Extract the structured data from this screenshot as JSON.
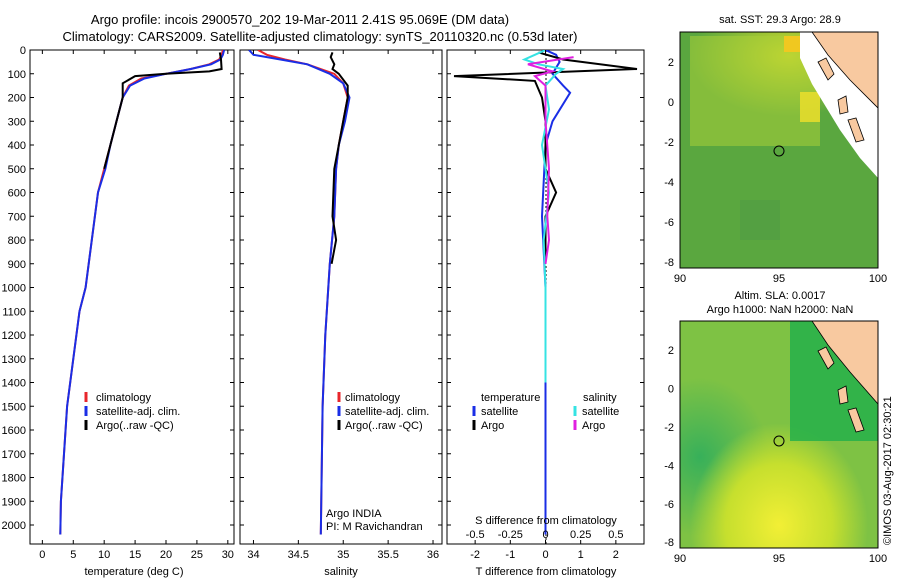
{
  "header": {
    "title_line1": "Argo profile: incois 2900570_202 19-Mar-2011 2.41S 95.069E (DM data)",
    "title_line2": "Climatology: CARS2009. Satellite-adjusted climatology: synTS_20110320.nc (0.53d later)"
  },
  "footer": {
    "credit": "©IMOS 03-Aug-2017 02:30:21"
  },
  "colors": {
    "climatology": "#e8262b",
    "satellite": "#1a2ee6",
    "argo": "#000000",
    "salinity_satellite": "#35e3e3",
    "salinity_argo": "#e020e0"
  },
  "chart_data": [
    {
      "type": "line",
      "name": "temperature-profile",
      "xlabel": "temperature (deg C)",
      "ylabel": "depth (m)",
      "xlim": [
        -2,
        31
      ],
      "ylim": [
        2080,
        0
      ],
      "xticks": [
        0,
        5,
        10,
        15,
        20,
        25,
        30
      ],
      "yticks": [
        0,
        100,
        200,
        300,
        400,
        500,
        600,
        700,
        800,
        900,
        1000,
        1100,
        1200,
        1300,
        1400,
        1500,
        1600,
        1700,
        1800,
        1900,
        2000
      ],
      "legend": [
        "climatology",
        "satellite-adj. clim.",
        "Argo(..raw -QC)"
      ],
      "series": [
        {
          "name": "climatology",
          "color": "#e8262b",
          "points": [
            [
              29.2,
              0
            ],
            [
              29,
              20
            ],
            [
              28.6,
              40
            ],
            [
              27,
              60
            ],
            [
              24,
              80
            ],
            [
              20,
              100
            ],
            [
              16,
              120
            ],
            [
              14,
              150
            ],
            [
              13,
              200
            ],
            [
              12,
              300
            ],
            [
              11,
              400
            ],
            [
              10,
              500
            ],
            [
              9,
              600
            ],
            [
              8,
              800
            ],
            [
              7,
              1000
            ],
            [
              6,
              1100
            ],
            [
              5,
              1300
            ],
            [
              4,
              1500
            ],
            [
              3.5,
              1700
            ],
            [
              3,
              1900
            ],
            [
              2.9,
              2040
            ]
          ]
        },
        {
          "name": "satellite-adj. clim.",
          "color": "#1a2ee6",
          "points": [
            [
              29.4,
              0
            ],
            [
              29.2,
              20
            ],
            [
              28.8,
              40
            ],
            [
              27.3,
              60
            ],
            [
              24,
              80
            ],
            [
              20,
              100
            ],
            [
              16.5,
              120
            ],
            [
              14.2,
              150
            ],
            [
              13,
              200
            ],
            [
              12,
              300
            ],
            [
              11,
              400
            ],
            [
              10.2,
              500
            ],
            [
              9,
              600
            ],
            [
              8,
              800
            ],
            [
              7,
              1000
            ],
            [
              6,
              1100
            ],
            [
              5,
              1300
            ],
            [
              4,
              1500
            ],
            [
              3.5,
              1700
            ],
            [
              3,
              1900
            ],
            [
              2.9,
              2040
            ]
          ]
        },
        {
          "name": "Argo(..raw -QC)",
          "color": "#000000",
          "points": [
            [
              28.7,
              10
            ],
            [
              28.9,
              40
            ],
            [
              29,
              80
            ],
            [
              27,
              90
            ],
            [
              20,
              100
            ],
            [
              15,
              110
            ],
            [
              13,
              140
            ],
            [
              13,
              200
            ],
            [
              12,
              300
            ],
            [
              11,
              400
            ],
            [
              10,
              500
            ]
          ]
        }
      ]
    },
    {
      "type": "line",
      "name": "salinity-profile",
      "xlabel": "salinity",
      "ylabel": "depth (m)",
      "xlim": [
        33.85,
        36.1
      ],
      "ylim": [
        2080,
        0
      ],
      "xticks": [
        34,
        34.5,
        35,
        35.5,
        36
      ],
      "legend": [
        "climatology",
        "satellite-adj. clim.",
        "Argo(..raw -QC)"
      ],
      "annotation": [
        "Argo INDIA",
        "PI: M Ravichandran"
      ],
      "series": [
        {
          "name": "climatology",
          "color": "#e8262b",
          "points": [
            [
              34.05,
              0
            ],
            [
              34.15,
              20
            ],
            [
              34.35,
              40
            ],
            [
              34.6,
              60
            ],
            [
              34.9,
              100
            ],
            [
              35.0,
              140
            ],
            [
              35.05,
              200
            ],
            [
              35.0,
              300
            ],
            [
              34.95,
              400
            ],
            [
              34.92,
              500
            ],
            [
              34.9,
              700
            ],
            [
              34.85,
              900
            ],
            [
              34.8,
              1200
            ],
            [
              34.77,
              1500
            ],
            [
              34.75,
              2040
            ]
          ]
        },
        {
          "name": "satellite-adj. clim.",
          "color": "#1a2ee6",
          "points": [
            [
              33.95,
              0
            ],
            [
              34.0,
              20
            ],
            [
              34.3,
              40
            ],
            [
              34.6,
              60
            ],
            [
              34.85,
              100
            ],
            [
              35.0,
              140
            ],
            [
              35.07,
              200
            ],
            [
              35.02,
              300
            ],
            [
              34.95,
              400
            ],
            [
              34.92,
              500
            ],
            [
              34.9,
              700
            ],
            [
              34.85,
              900
            ],
            [
              34.8,
              1200
            ],
            [
              34.77,
              1500
            ],
            [
              34.75,
              2040
            ]
          ]
        },
        {
          "name": "Argo(..raw -QC)",
          "color": "#000000",
          "points": [
            [
              34.88,
              10
            ],
            [
              34.86,
              30
            ],
            [
              34.9,
              60
            ],
            [
              34.88,
              80
            ],
            [
              34.95,
              100
            ],
            [
              35.05,
              150
            ],
            [
              35.05,
              200
            ],
            [
              35.0,
              300
            ],
            [
              34.95,
              400
            ],
            [
              34.9,
              500
            ],
            [
              34.88,
              700
            ],
            [
              34.92,
              800
            ],
            [
              34.87,
              900
            ]
          ]
        }
      ]
    },
    {
      "type": "line",
      "name": "difference-profile",
      "xlabel": "T difference from climatology",
      "xlabel_top": "S difference from climatology",
      "xlim": [
        -2.8,
        2.8
      ],
      "ylim": [
        2080,
        0
      ],
      "xticks": [
        -2,
        -1,
        0,
        1,
        2
      ],
      "xticks_s": [
        -0.5,
        -0.25,
        0,
        0.25,
        0.5
      ],
      "legend_headers": [
        "temperature",
        "salinity"
      ],
      "legend": [
        "satellite",
        "Argo",
        "satellite",
        "Argo"
      ],
      "series": [
        {
          "name": "temperature satellite",
          "color": "#1a2ee6",
          "points": [
            [
              0,
              0
            ],
            [
              0.3,
              20
            ],
            [
              0.4,
              50
            ],
            [
              0.2,
              100
            ],
            [
              0.5,
              150
            ],
            [
              0.7,
              180
            ],
            [
              0.2,
              300
            ],
            [
              0,
              400
            ],
            [
              -0.1,
              700
            ],
            [
              0,
              1000
            ],
            [
              0,
              2040
            ]
          ]
        },
        {
          "name": "temperature Argo",
          "color": "#000000",
          "points": [
            [
              -0.2,
              10
            ],
            [
              0.5,
              40
            ],
            [
              2.6,
              80
            ],
            [
              -2.6,
              110
            ],
            [
              -0.3,
              130
            ],
            [
              -0.1,
              200
            ],
            [
              0,
              300
            ],
            [
              0,
              500
            ],
            [
              0.3,
              600
            ],
            [
              0,
              700
            ],
            [
              0,
              800
            ],
            [
              0,
              900
            ]
          ]
        },
        {
          "name": "salinity satellite",
          "color": "#35e3e3",
          "points": [
            [
              0,
              0
            ],
            [
              -0.3,
              20
            ],
            [
              -0.6,
              40
            ],
            [
              -0.2,
              60
            ],
            [
              0.5,
              80
            ],
            [
              0.3,
              100
            ],
            [
              0,
              150
            ],
            [
              0.1,
              250
            ],
            [
              -0.1,
              400
            ],
            [
              0.1,
              600
            ],
            [
              -0.05,
              800
            ],
            [
              0,
              1000
            ],
            [
              0,
              1400
            ]
          ]
        },
        {
          "name": "salinity Argo",
          "color": "#e020e0",
          "points": [
            [
              0.8,
              30
            ],
            [
              -0.5,
              60
            ],
            [
              0.2,
              90
            ],
            [
              -0.3,
              110
            ],
            [
              0,
              150
            ],
            [
              0,
              300
            ],
            [
              0.1,
              500
            ],
            [
              0.05,
              700
            ],
            [
              0.1,
              800
            ],
            [
              0,
              900
            ]
          ]
        }
      ]
    },
    {
      "type": "heatmap",
      "name": "sst-map",
      "title": "sat. SST: 29.3 Argo: 28.9",
      "xlim": [
        90,
        100
      ],
      "ylim": [
        -8.3,
        3.5
      ],
      "xticks": [
        90,
        95,
        100
      ],
      "yticks": [
        2,
        0,
        -2,
        -4,
        -6,
        -8
      ],
      "marker": [
        95.07,
        -2.41
      ]
    },
    {
      "type": "heatmap",
      "name": "sla-map",
      "title_line1": "Altim. SLA: 0.0017",
      "title_line2": "Argo h1000: NaN h2000: NaN",
      "xlim": [
        90,
        100
      ],
      "ylim": [
        -8.3,
        3.5
      ],
      "xticks": [
        90,
        95,
        100
      ],
      "yticks": [
        2,
        0,
        -2,
        -4,
        -6,
        -8
      ],
      "marker": [
        95.07,
        -2.41
      ]
    }
  ]
}
